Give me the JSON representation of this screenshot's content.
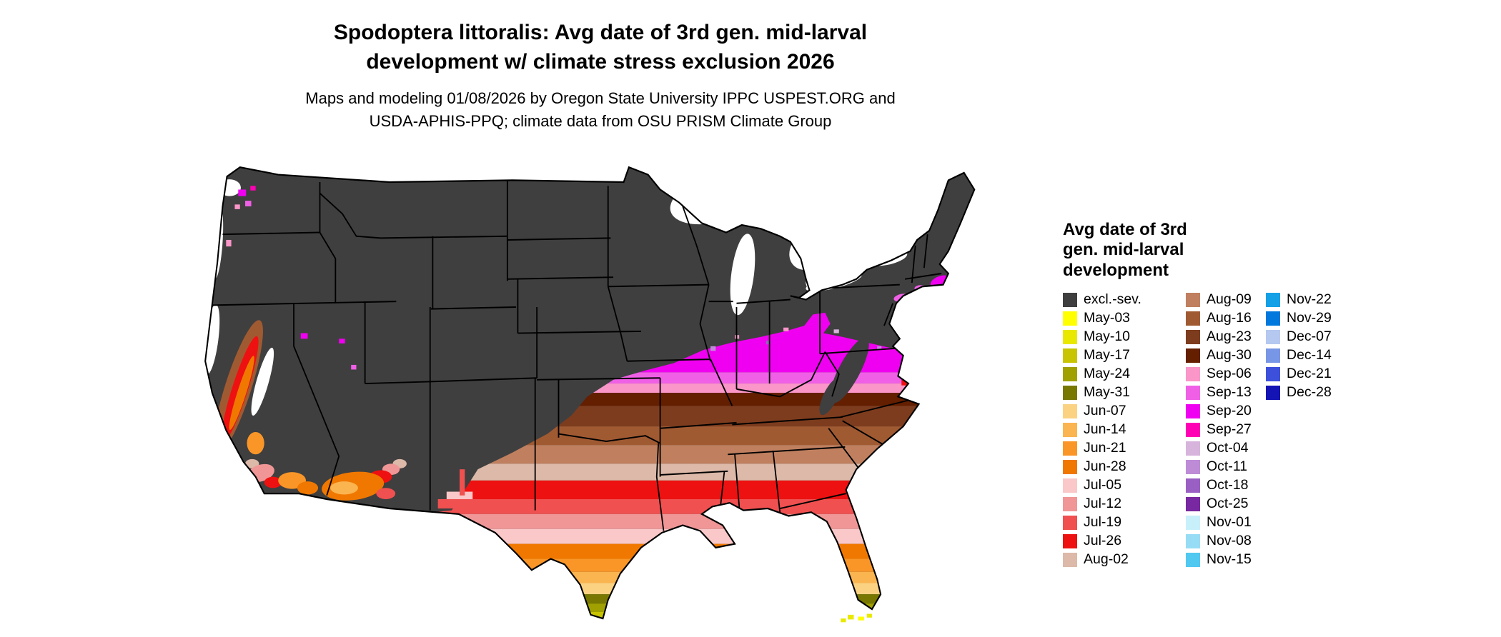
{
  "title": {
    "line1": "Spodoptera littoralis: Avg date of 3rd gen. mid-larval",
    "line2": "development w/ climate stress exclusion 2026"
  },
  "subtitle": {
    "line1": "Maps and modeling 01/08/2026 by Oregon State University IPPC USPEST.ORG and",
    "line2": "USDA-APHIS-PPQ; climate data from OSU PRISM Climate Group"
  },
  "legend": {
    "title_lines": [
      "Avg date of 3rd",
      "gen. mid-larval",
      "development"
    ],
    "columns": [
      [
        {
          "label": "excl.-sev.",
          "color": "#3F3F3F"
        },
        {
          "label": "May-03",
          "color": "#FFFF00"
        },
        {
          "label": "May-10",
          "color": "#E8E800"
        },
        {
          "label": "May-17",
          "color": "#C8C400"
        },
        {
          "label": "May-24",
          "color": "#A0A000"
        },
        {
          "label": "May-31",
          "color": "#787800"
        },
        {
          "label": "Jun-07",
          "color": "#FAD282"
        },
        {
          "label": "Jun-14",
          "color": "#FAB450"
        },
        {
          "label": "Jun-21",
          "color": "#FA9628"
        },
        {
          "label": "Jun-28",
          "color": "#F07800"
        },
        {
          "label": "Jul-05",
          "color": "#FAC8C8"
        },
        {
          "label": "Jul-12",
          "color": "#F09696"
        },
        {
          "label": "Jul-19",
          "color": "#F05050"
        },
        {
          "label": "Jul-26",
          "color": "#EE1111"
        },
        {
          "label": "Aug-02",
          "color": "#DCB9A8"
        }
      ],
      [
        {
          "label": "Aug-09",
          "color": "#C08060"
        },
        {
          "label": "Aug-16",
          "color": "#A05A32"
        },
        {
          "label": "Aug-23",
          "color": "#7D3C1E"
        },
        {
          "label": "Aug-30",
          "color": "#641E00"
        },
        {
          "label": "Sep-06",
          "color": "#FA96C8"
        },
        {
          "label": "Sep-13",
          "color": "#F060E6"
        },
        {
          "label": "Sep-20",
          "color": "#F000F0"
        },
        {
          "label": "Sep-27",
          "color": "#FF00B4"
        },
        {
          "label": "Oct-04",
          "color": "#D7B4DC"
        },
        {
          "label": "Oct-11",
          "color": "#BE8CD7"
        },
        {
          "label": "Oct-18",
          "color": "#9A5FC3"
        },
        {
          "label": "Oct-25",
          "color": "#7828A0"
        },
        {
          "label": "Nov-01",
          "color": "#C8F0FA"
        },
        {
          "label": "Nov-08",
          "color": "#96DCF5"
        },
        {
          "label": "Nov-15",
          "color": "#50C8F0"
        }
      ],
      [
        {
          "label": "Nov-22",
          "color": "#14A0E6"
        },
        {
          "label": "Nov-29",
          "color": "#0078DC"
        },
        {
          "label": "Dec-07",
          "color": "#B4C8F0"
        },
        {
          "label": "Dec-14",
          "color": "#7896E6"
        },
        {
          "label": "Dec-21",
          "color": "#3C50DC"
        },
        {
          "label": "Dec-28",
          "color": "#1414B4"
        }
      ]
    ]
  }
}
